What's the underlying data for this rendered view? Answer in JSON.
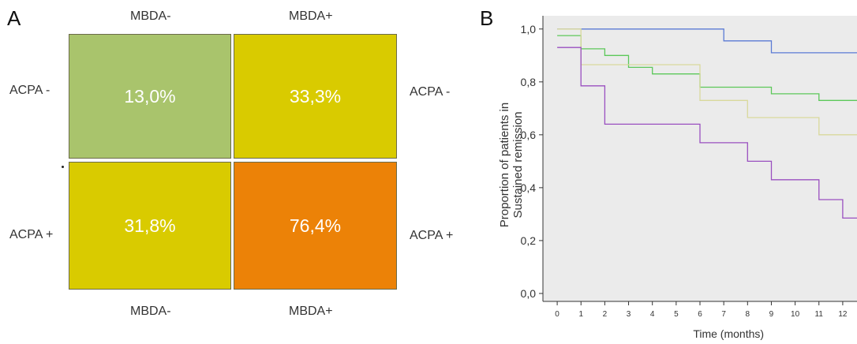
{
  "panel_a": {
    "letter": "A",
    "top_labels": [
      "MBDA-",
      "MBDA+"
    ],
    "bottom_labels": [
      "MBDA-",
      "MBDA+"
    ],
    "left_labels": [
      "ACPA -",
      "ACPA +"
    ],
    "right_labels": [
      "ACPA -",
      "ACPA +"
    ],
    "cells": [
      {
        "value": "13,0%",
        "color": "#a9c46c"
      },
      {
        "value": "33,3%",
        "color": "#d9cb00"
      },
      {
        "value": "31,8%",
        "color": "#d9cb00"
      },
      {
        "value": "76,4%",
        "color": "#ec8207"
      }
    ]
  },
  "panel_b": {
    "letter": "B"
  },
  "chart_data": {
    "type": "line",
    "step": true,
    "ylabel_lines": [
      "Proportion of patients in",
      "Sustained remission"
    ],
    "xlabel": "Time (months)",
    "xticks": [
      "0",
      "1",
      "2",
      "3",
      "4",
      "5",
      "6",
      "7",
      "8",
      "9",
      "10",
      "11",
      "12"
    ],
    "yticks": [
      "0,0",
      "0,2",
      "0,4",
      "0,6",
      "0,8",
      "1,0"
    ],
    "xlim": [
      -0.6,
      12.6
    ],
    "ylim": [
      -0.03,
      1.05
    ],
    "background": "#ebebeb",
    "series": [
      {
        "color": "#5b7bd4",
        "x": [
          0,
          7,
          7,
          9,
          9,
          12.6
        ],
        "y": [
          1.0,
          1.0,
          0.955,
          0.955,
          0.91,
          0.91
        ]
      },
      {
        "color": "#5cc85a",
        "x": [
          0,
          1,
          1,
          2,
          2,
          3,
          3,
          4,
          4,
          6,
          6,
          9,
          9,
          11,
          11,
          12.6
        ],
        "y": [
          0.975,
          0.975,
          0.925,
          0.925,
          0.9,
          0.9,
          0.855,
          0.855,
          0.83,
          0.83,
          0.78,
          0.78,
          0.755,
          0.755,
          0.73,
          0.73
        ]
      },
      {
        "color": "#d9d99c",
        "x": [
          0,
          1,
          1,
          6,
          6,
          8,
          8,
          11,
          11,
          12.6
        ],
        "y": [
          1.0,
          1.0,
          0.865,
          0.865,
          0.73,
          0.73,
          0.665,
          0.665,
          0.6,
          0.6
        ]
      },
      {
        "color": "#9a4fc0",
        "x": [
          0,
          1,
          1,
          2,
          2,
          6,
          6,
          8,
          8,
          9,
          9,
          11,
          11,
          12,
          12,
          12.6
        ],
        "y": [
          0.93,
          0.93,
          0.785,
          0.785,
          0.64,
          0.64,
          0.57,
          0.57,
          0.5,
          0.5,
          0.43,
          0.43,
          0.355,
          0.355,
          0.285,
          0.285
        ]
      }
    ]
  }
}
